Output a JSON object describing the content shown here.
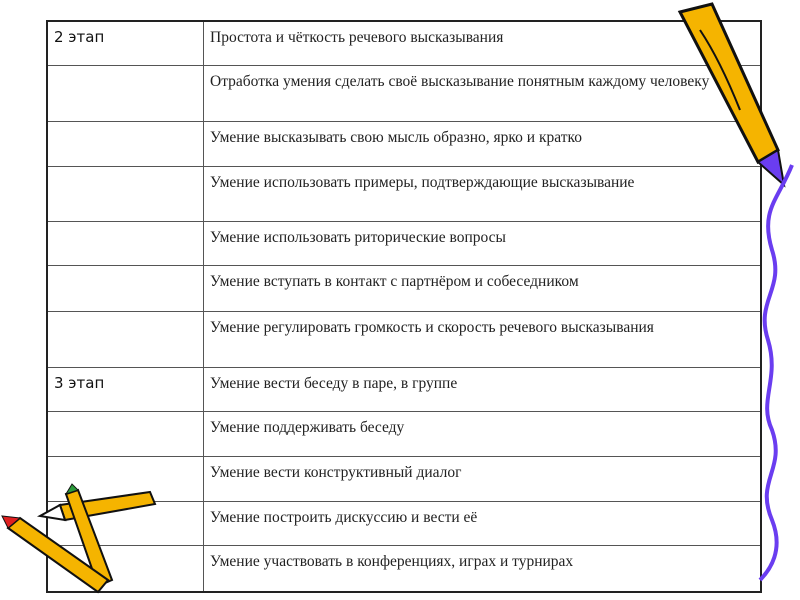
{
  "rows": [
    {
      "stage": "2 этап",
      "skill": "Простота и чёткость речевого высказывания"
    },
    {
      "stage": "",
      "skill": "Отработка умения сделать своё высказывание понятным каждому человеку"
    },
    {
      "stage": "",
      "skill": "Умение высказывать свою мысль образно, ярко и кратко"
    },
    {
      "stage": "",
      "skill": "Умение использовать примеры, подтверждающие высказывание"
    },
    {
      "stage": "",
      "skill": "Умение использовать риторические вопросы"
    },
    {
      "stage": "",
      "skill": "Умение вступать в контакт с партнёром и собеседником"
    },
    {
      "stage": "",
      "skill": "Умение регулировать громкость и скорость речевого высказывания"
    },
    {
      "stage": "3 этап",
      "skill": "Умение вести беседу в паре, в группе"
    },
    {
      "stage": "",
      "skill": "Умение поддерживать беседу"
    },
    {
      "stage": "",
      "skill": "Умение вести конструктивный диалог"
    },
    {
      "stage": "",
      "skill": "Умение построить дискуссию и вести её"
    },
    {
      "stage": "",
      "skill": "Умение участвовать в конференциях, играх и турнирах"
    }
  ],
  "colors": {
    "pencil": "#f5b400",
    "squiggle": "#6a3df0"
  }
}
